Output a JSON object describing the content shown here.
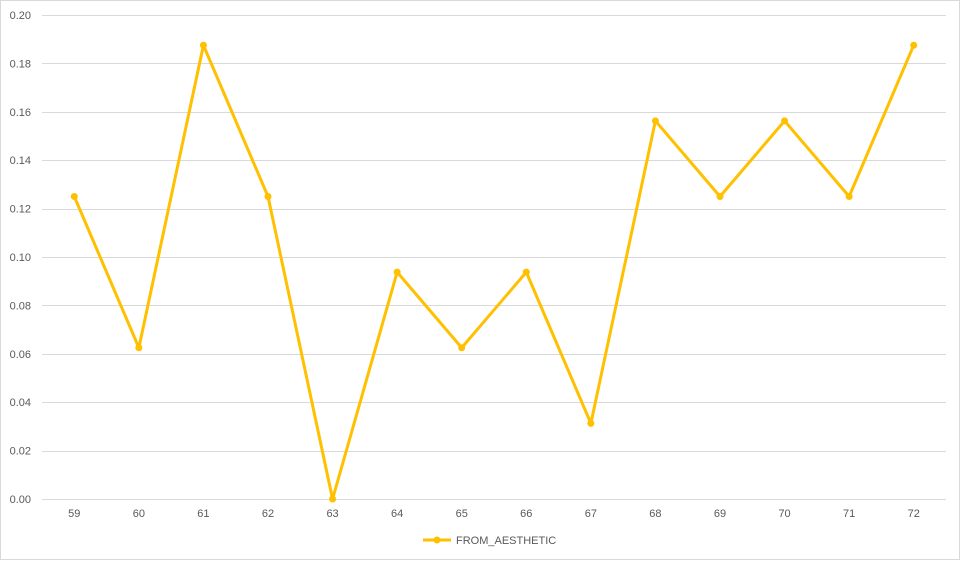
{
  "chart_data": {
    "type": "line",
    "title": "",
    "xlabel": "",
    "ylabel": "",
    "categories": [
      "59",
      "60",
      "61",
      "62",
      "63",
      "64",
      "65",
      "66",
      "67",
      "68",
      "69",
      "70",
      "71",
      "72"
    ],
    "series": [
      {
        "name": "FROM_AESTHETIC",
        "color": "#FFC000",
        "values": [
          0.125,
          0.0625,
          0.1875,
          0.125,
          0.0,
          0.09375,
          0.0625,
          0.09375,
          0.03125,
          0.15625,
          0.125,
          0.15625,
          0.125,
          0.1875
        ]
      }
    ],
    "ylim": [
      0,
      0.2
    ],
    "yticks": [
      "0.00",
      "0.02",
      "0.04",
      "0.06",
      "0.08",
      "0.10",
      "0.12",
      "0.14",
      "0.16",
      "0.18",
      "0.20"
    ],
    "grid": true,
    "legend": "bottom",
    "gridline_color": "#D9D9D9"
  }
}
